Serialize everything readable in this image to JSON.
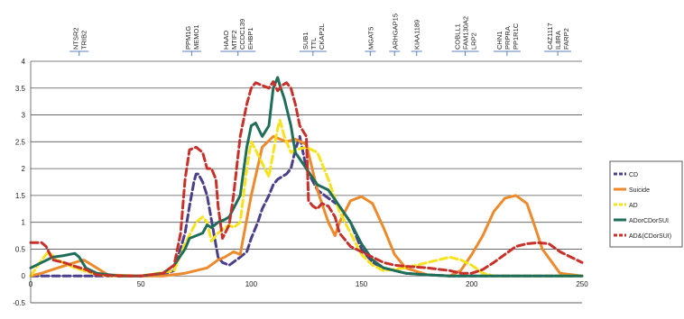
{
  "chart_data": {
    "type": "line",
    "title": "",
    "xlabel": "",
    "ylabel": "",
    "xlim": [
      0,
      250
    ],
    "ylim": [
      -0.5,
      4
    ],
    "x_ticks": [
      0,
      50,
      100,
      150,
      200,
      250
    ],
    "y_ticks": [
      -0.5,
      0,
      0.5,
      1,
      1.5,
      2,
      2.5,
      3,
      3.5,
      4
    ],
    "y_tick_labels": [
      "-0.5",
      "0",
      "0.5",
      "1",
      "1.5",
      "2",
      "2.5",
      "3",
      "3.5",
      "4"
    ],
    "grid": "horizontal",
    "legend_position": "right",
    "gene_markers": [
      {
        "x": 22,
        "labels": [
          "NTSR2",
          "TRIB2"
        ]
      },
      {
        "x": 73,
        "labels": [
          "PPM1G",
          "MEMO1"
        ]
      },
      {
        "x": 94,
        "labels": [
          "HAAO",
          "MTIF2",
          "CCDC139",
          "EHBP1"
        ]
      },
      {
        "x": 128,
        "labels": [
          "SUB1",
          "TTL",
          "CKAP2L"
        ]
      },
      {
        "x": 154,
        "labels": [
          "MGAT5"
        ]
      },
      {
        "x": 165,
        "labels": [
          "ARHGAP15"
        ]
      },
      {
        "x": 175,
        "labels": [
          "KIAA1189"
        ]
      },
      {
        "x": 197,
        "labels": [
          "COBLL1",
          "FAM130A2",
          "LRP2"
        ]
      },
      {
        "x": 216,
        "labels": [
          "CHN1",
          "PRPRA",
          "PP1R1C"
        ]
      },
      {
        "x": 239,
        "labels": [
          "C4Z1117",
          "IL8RA",
          "FARP2"
        ]
      }
    ],
    "series": [
      {
        "name": "CD",
        "color": "#4a3f8a",
        "dash": "dash",
        "x": [
          0,
          20,
          50,
          60,
          65,
          70,
          72,
          74,
          75,
          76,
          78,
          80,
          83,
          85,
          87,
          90,
          95,
          98,
          100,
          103,
          105,
          108,
          110,
          112,
          114,
          116,
          118,
          120,
          122,
          125,
          130,
          135,
          140,
          145,
          150,
          155,
          160,
          170,
          180,
          190,
          200,
          210,
          220,
          230,
          240,
          250
        ],
        "y": [
          0,
          0,
          0,
          0.02,
          0.1,
          0.8,
          1.3,
          1.75,
          1.9,
          1.9,
          1.75,
          1.5,
          0.8,
          0.35,
          0.25,
          0.2,
          0.35,
          0.45,
          0.7,
          1.0,
          1.25,
          1.5,
          1.7,
          1.8,
          1.85,
          1.9,
          2.0,
          2.35,
          2.6,
          2.0,
          1.6,
          1.45,
          1.3,
          1.0,
          0.5,
          0.25,
          0.15,
          0.05,
          0.02,
          0,
          0,
          0,
          0,
          0,
          0,
          0
        ]
      },
      {
        "name": "Suicide",
        "color": "#ed8a2c",
        "dash": "solid",
        "x": [
          0,
          5,
          10,
          20,
          24,
          28,
          35,
          50,
          60,
          70,
          80,
          85,
          88,
          92,
          95,
          100,
          105,
          110,
          113,
          116,
          120,
          125,
          130,
          135,
          138,
          140,
          145,
          150,
          155,
          160,
          165,
          170,
          180,
          190,
          195,
          200,
          205,
          210,
          215,
          220,
          225,
          228,
          232,
          240,
          250
        ],
        "y": [
          0,
          0.05,
          0.12,
          0.25,
          0.3,
          0.2,
          0.02,
          0,
          0,
          0.05,
          0.15,
          0.3,
          0.35,
          0.45,
          0.4,
          1.5,
          2.4,
          2.6,
          2.55,
          2.5,
          2.55,
          2.45,
          1.6,
          1.0,
          0.75,
          1.0,
          1.4,
          1.48,
          1.35,
          0.9,
          0.4,
          0.15,
          0.02,
          0,
          0.1,
          0.4,
          0.75,
          1.2,
          1.45,
          1.5,
          1.35,
          1.0,
          0.5,
          0.05,
          0
        ]
      },
      {
        "name": "AD",
        "color": "#f7e21b",
        "dash": "dash",
        "x": [
          0,
          5,
          8,
          12,
          20,
          28,
          35,
          50,
          65,
          70,
          75,
          78,
          80,
          82,
          85,
          88,
          90,
          92,
          95,
          98,
          100,
          102,
          105,
          108,
          110,
          112,
          113,
          115,
          118,
          120,
          125,
          130,
          135,
          140,
          145,
          150,
          155,
          160,
          170,
          180,
          190,
          195,
          200,
          205,
          210,
          220,
          230,
          240,
          250
        ],
        "y": [
          0,
          0.3,
          0.45,
          0.3,
          0.15,
          0.05,
          0,
          0,
          0.1,
          0.6,
          1.0,
          1.1,
          1.0,
          0.65,
          0.8,
          0.9,
          0.95,
          0.9,
          1.0,
          2.0,
          2.5,
          2.35,
          2.1,
          1.85,
          2.3,
          2.75,
          2.9,
          2.6,
          2.3,
          2.35,
          2.4,
          2.3,
          1.8,
          1.2,
          0.8,
          0.4,
          0.2,
          0.1,
          0.15,
          0.25,
          0.35,
          0.3,
          0.2,
          0.05,
          0,
          0,
          0,
          0,
          0
        ]
      },
      {
        "name": "ADorCDorSUI",
        "color": "#1f6e5a",
        "dash": "solid",
        "x": [
          0,
          5,
          10,
          15,
          20,
          22,
          25,
          30,
          40,
          50,
          60,
          65,
          70,
          72,
          75,
          78,
          80,
          82,
          85,
          88,
          90,
          95,
          98,
          100,
          102,
          105,
          108,
          110,
          112,
          113,
          115,
          118,
          120,
          125,
          130,
          135,
          140,
          145,
          150,
          155,
          160,
          170,
          180,
          190,
          200,
          210,
          220,
          230,
          240,
          250
        ],
        "y": [
          0.15,
          0.25,
          0.35,
          0.38,
          0.42,
          0.35,
          0.15,
          0.05,
          0,
          0,
          0.05,
          0.2,
          0.5,
          0.7,
          0.75,
          0.8,
          0.95,
          0.9,
          1.0,
          1.05,
          1.1,
          1.5,
          2.4,
          2.8,
          2.85,
          2.6,
          2.8,
          3.5,
          3.7,
          3.55,
          3.3,
          2.8,
          2.3,
          2.0,
          1.7,
          1.6,
          1.3,
          1.0,
          0.6,
          0.3,
          0.15,
          0.05,
          0.02,
          0,
          0,
          0,
          0,
          0,
          0,
          0
        ]
      },
      {
        "name": "AD&(CDorSUI)",
        "color": "#c8302a",
        "dash": "dash",
        "x": [
          0,
          5,
          7,
          10,
          15,
          20,
          25,
          30,
          40,
          50,
          60,
          65,
          68,
          70,
          72,
          75,
          78,
          80,
          82,
          84,
          85,
          87,
          90,
          92,
          95,
          98,
          100,
          102,
          105,
          108,
          110,
          112,
          114,
          116,
          118,
          120,
          122,
          125,
          126,
          128,
          130,
          132,
          135,
          138,
          140,
          145,
          150,
          155,
          160,
          165,
          170,
          180,
          190,
          195,
          200,
          205,
          210,
          215,
          220,
          225,
          230,
          235,
          240,
          250
        ],
        "y": [
          0.62,
          0.62,
          0.55,
          0.3,
          0.25,
          0.18,
          0.12,
          0.02,
          0,
          0,
          0.05,
          0.2,
          0.8,
          1.8,
          2.35,
          2.4,
          2.3,
          2.0,
          2.0,
          1.8,
          1.3,
          0.7,
          0.95,
          1.5,
          2.6,
          3.2,
          3.5,
          3.6,
          3.55,
          3.5,
          3.62,
          3.45,
          3.55,
          3.6,
          3.5,
          3.2,
          2.8,
          2.6,
          1.4,
          1.3,
          1.25,
          1.35,
          1.3,
          1.1,
          0.8,
          0.55,
          0.45,
          0.35,
          0.25,
          0.2,
          0.18,
          0.15,
          0.1,
          0.05,
          0.05,
          0.12,
          0.25,
          0.4,
          0.55,
          0.6,
          0.62,
          0.6,
          0.45,
          0.25
        ]
      }
    ]
  }
}
